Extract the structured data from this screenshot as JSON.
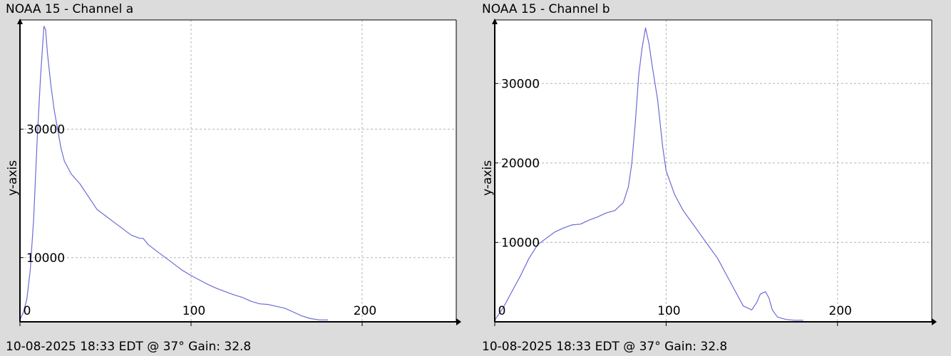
{
  "colors": {
    "background": "#dcdcdc",
    "plot_background": "#ffffff",
    "series": "#6b6bd6",
    "grid": "#b4b4b4",
    "axis": "#000000"
  },
  "panels": [
    {
      "title": "NOAA 15 - Channel a",
      "footer": "10-08-2025 18:33 EDT @ 37° Gain: 32.8"
    },
    {
      "title": "NOAA 15 - Channel b",
      "footer": "10-08-2025 18:33 EDT @ 37° Gain: 32.8"
    }
  ],
  "chart_data": [
    {
      "type": "line",
      "title": "NOAA 15 - Channel a",
      "xlabel": "",
      "ylabel": "y-axis",
      "xlim": [
        0,
        255
      ],
      "ylim": [
        0,
        47000
      ],
      "grid": true,
      "x_ticks": [
        0,
        100,
        200
      ],
      "y_ticks": [
        10000,
        30000
      ],
      "series": [
        {
          "x": [
            0,
            2,
            4,
            6,
            8,
            10,
            12,
            13,
            14,
            15,
            16,
            18,
            20,
            22,
            24,
            26,
            28,
            30,
            35,
            40,
            45,
            50,
            55,
            60,
            65,
            70,
            72,
            75,
            80,
            85,
            90,
            95,
            100,
            105,
            110,
            115,
            120,
            125,
            130,
            135,
            140,
            145,
            150,
            155,
            160,
            165,
            170,
            175,
            180
          ],
          "y": [
            300,
            1500,
            3500,
            8000,
            16000,
            28000,
            38000,
            42000,
            46000,
            45500,
            42000,
            37000,
            33000,
            30000,
            27000,
            25000,
            24000,
            23000,
            21500,
            19500,
            17500,
            16500,
            15500,
            14500,
            13500,
            13000,
            13000,
            12000,
            11000,
            10000,
            9000,
            8000,
            7200,
            6500,
            5800,
            5200,
            4700,
            4200,
            3800,
            3200,
            2800,
            2700,
            2400,
            2100,
            1500,
            900,
            500,
            300,
            300
          ]
        }
      ]
    },
    {
      "type": "line",
      "title": "NOAA 15 - Channel b",
      "xlabel": "",
      "ylabel": "y-axis",
      "xlim": [
        0,
        255
      ],
      "ylim": [
        0,
        38000
      ],
      "grid": true,
      "x_ticks": [
        0,
        100,
        200
      ],
      "y_ticks": [
        10000,
        20000,
        30000
      ],
      "series": [
        {
          "x": [
            0,
            5,
            10,
            15,
            20,
            25,
            30,
            35,
            40,
            45,
            50,
            55,
            60,
            65,
            70,
            75,
            78,
            80,
            82,
            84,
            86,
            88,
            90,
            92,
            95,
            98,
            100,
            105,
            110,
            115,
            120,
            125,
            130,
            135,
            140,
            145,
            150,
            153,
            155,
            158,
            160,
            162,
            165,
            170,
            175,
            180
          ],
          "y": [
            200,
            1800,
            3800,
            5800,
            8000,
            9700,
            10500,
            11300,
            11800,
            12200,
            12300,
            12800,
            13200,
            13700,
            14000,
            15000,
            17000,
            20000,
            25000,
            31000,
            34500,
            37000,
            35000,
            32000,
            28000,
            22000,
            19000,
            16000,
            14000,
            12500,
            11000,
            9500,
            8000,
            6000,
            4000,
            2000,
            1500,
            2500,
            3500,
            3800,
            3000,
            1500,
            600,
            300,
            200,
            200
          ]
        }
      ]
    }
  ]
}
